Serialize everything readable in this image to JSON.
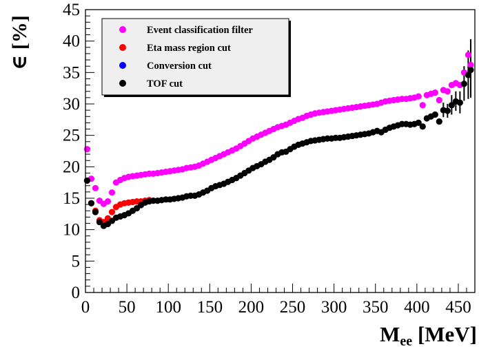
{
  "chart_data": {
    "type": "scatter",
    "title": "",
    "ylabel": "∈ [%]",
    "xlabel_main": "M",
    "xlabel_sub": "ee",
    "xlabel_unit": " [MeV]",
    "xlim": [
      0,
      470
    ],
    "ylim": [
      0,
      45
    ],
    "x_ticks": [
      "0",
      "50",
      "100",
      "150",
      "200",
      "250",
      "300",
      "350",
      "400",
      "450"
    ],
    "y_ticks": [
      "0",
      "5",
      "10",
      "15",
      "20",
      "25",
      "30",
      "35",
      "40",
      "45"
    ],
    "legend_position": "top-left",
    "series": [
      {
        "name": "Event classification filter",
        "color": "#ff00ff",
        "points": [
          [
            2,
            22.8
          ],
          [
            7,
            18.1
          ],
          [
            12,
            16.6
          ],
          [
            17,
            14.6
          ],
          [
            22,
            14.1
          ],
          [
            27,
            14.5
          ],
          [
            32,
            15.9
          ],
          [
            37,
            17.5
          ],
          [
            42,
            17.9
          ],
          [
            47,
            18.2
          ],
          [
            52,
            18.4
          ],
          [
            57,
            18.5
          ],
          [
            62,
            18.6
          ],
          [
            67,
            18.7
          ],
          [
            72,
            18.8
          ],
          [
            77,
            18.9
          ],
          [
            82,
            18.9
          ],
          [
            87,
            19.0
          ],
          [
            92,
            19.1
          ],
          [
            97,
            19.2
          ],
          [
            102,
            19.3
          ],
          [
            107,
            19.4
          ],
          [
            112,
            19.5
          ],
          [
            117,
            19.6
          ],
          [
            122,
            19.8
          ],
          [
            127,
            19.9
          ],
          [
            132,
            20.0
          ],
          [
            137,
            20.2
          ],
          [
            142,
            20.5
          ],
          [
            147,
            20.8
          ],
          [
            152,
            21.1
          ],
          [
            157,
            21.4
          ],
          [
            162,
            21.7
          ],
          [
            167,
            22.0
          ],
          [
            172,
            22.3
          ],
          [
            177,
            22.6
          ],
          [
            182,
            22.9
          ],
          [
            187,
            23.3
          ],
          [
            192,
            23.7
          ],
          [
            197,
            24.1
          ],
          [
            202,
            24.5
          ],
          [
            207,
            24.8
          ],
          [
            212,
            25.1
          ],
          [
            217,
            25.4
          ],
          [
            222,
            25.7
          ],
          [
            227,
            26.0
          ],
          [
            232,
            26.3
          ],
          [
            237,
            26.5
          ],
          [
            242,
            26.7
          ],
          [
            247,
            27.0
          ],
          [
            252,
            27.3
          ],
          [
            257,
            27.6
          ],
          [
            262,
            27.8
          ],
          [
            267,
            28.1
          ],
          [
            272,
            28.3
          ],
          [
            277,
            28.5
          ],
          [
            282,
            28.6
          ],
          [
            287,
            28.7
          ],
          [
            292,
            28.8
          ],
          [
            297,
            28.9
          ],
          [
            302,
            29.0
          ],
          [
            307,
            29.1
          ],
          [
            312,
            29.2
          ],
          [
            317,
            29.3
          ],
          [
            322,
            29.4
          ],
          [
            327,
            29.5
          ],
          [
            332,
            29.6
          ],
          [
            337,
            29.7
          ],
          [
            342,
            29.8
          ],
          [
            347,
            29.9
          ],
          [
            352,
            30.0
          ],
          [
            357,
            30.2
          ],
          [
            362,
            30.4
          ],
          [
            367,
            30.5
          ],
          [
            372,
            30.6
          ],
          [
            377,
            30.7
          ],
          [
            382,
            30.8
          ],
          [
            387,
            30.8
          ],
          [
            392,
            30.9
          ],
          [
            397,
            31.0
          ],
          [
            402,
            31.2
          ],
          [
            407,
            29.8
          ],
          [
            412,
            31.4
          ],
          [
            417,
            31.6
          ],
          [
            422,
            31.8
          ],
          [
            427,
            30.6
          ],
          [
            432,
            32.2
          ],
          [
            437,
            32.0
          ],
          [
            442,
            33.0
          ],
          [
            447,
            33.3
          ],
          [
            452,
            33.0
          ],
          [
            457,
            35.0
          ],
          [
            462,
            37.8
          ],
          [
            465,
            36.2
          ]
        ]
      },
      {
        "name": "Eta mass region cut",
        "color": "#ff0000",
        "points": [
          [
            2,
            17.8
          ],
          [
            7,
            14.2
          ],
          [
            12,
            13.0
          ],
          [
            17,
            11.5
          ],
          [
            22,
            11.2
          ],
          [
            27,
            11.8
          ],
          [
            32,
            12.8
          ],
          [
            37,
            13.6
          ],
          [
            42,
            14.0
          ],
          [
            47,
            14.2
          ],
          [
            52,
            14.3
          ],
          [
            57,
            14.4
          ],
          [
            62,
            14.5
          ],
          [
            67,
            14.5
          ],
          [
            72,
            14.6
          ],
          [
            77,
            14.7
          ]
        ]
      },
      {
        "name": "Conversion cut",
        "color": "#0000ff",
        "points": []
      },
      {
        "name": "TOF cut",
        "color": "#000000",
        "points": [
          [
            2,
            17.8
          ],
          [
            7,
            14.2
          ],
          [
            12,
            12.8
          ],
          [
            17,
            11.2
          ],
          [
            22,
            10.6
          ],
          [
            27,
            10.9
          ],
          [
            32,
            11.4
          ],
          [
            37,
            11.9
          ],
          [
            42,
            12.1
          ],
          [
            47,
            12.3
          ],
          [
            52,
            12.6
          ],
          [
            57,
            13.0
          ],
          [
            62,
            13.4
          ],
          [
            67,
            13.9
          ],
          [
            72,
            14.3
          ],
          [
            77,
            14.5
          ],
          [
            82,
            14.6
          ],
          [
            87,
            14.6
          ],
          [
            92,
            14.7
          ],
          [
            97,
            14.8
          ],
          [
            102,
            14.8
          ],
          [
            107,
            14.9
          ],
          [
            112,
            15.0
          ],
          [
            117,
            15.1
          ],
          [
            122,
            15.3
          ],
          [
            127,
            15.4
          ],
          [
            132,
            15.4
          ],
          [
            137,
            15.6
          ],
          [
            142,
            15.9
          ],
          [
            147,
            16.2
          ],
          [
            152,
            16.6
          ],
          [
            157,
            16.9
          ],
          [
            162,
            17.1
          ],
          [
            167,
            17.3
          ],
          [
            172,
            17.6
          ],
          [
            177,
            17.9
          ],
          [
            182,
            18.2
          ],
          [
            187,
            18.6
          ],
          [
            192,
            19.0
          ],
          [
            197,
            19.4
          ],
          [
            202,
            19.8
          ],
          [
            207,
            20.1
          ],
          [
            212,
            20.4
          ],
          [
            217,
            20.8
          ],
          [
            222,
            21.1
          ],
          [
            227,
            21.5
          ],
          [
            232,
            22.0
          ],
          [
            237,
            22.3
          ],
          [
            242,
            22.4
          ],
          [
            247,
            22.8
          ],
          [
            252,
            23.2
          ],
          [
            257,
            23.5
          ],
          [
            262,
            23.7
          ],
          [
            267,
            23.9
          ],
          [
            272,
            24.1
          ],
          [
            277,
            24.2
          ],
          [
            282,
            24.3
          ],
          [
            287,
            24.4
          ],
          [
            292,
            24.5
          ],
          [
            297,
            24.5
          ],
          [
            302,
            24.6
          ],
          [
            307,
            24.6
          ],
          [
            312,
            24.7
          ],
          [
            317,
            24.8
          ],
          [
            322,
            24.9
          ],
          [
            327,
            25.0
          ],
          [
            332,
            25.1
          ],
          [
            337,
            25.2
          ],
          [
            342,
            25.3
          ],
          [
            347,
            25.5
          ],
          [
            352,
            25.7
          ],
          [
            357,
            25.5
          ],
          [
            362,
            25.9
          ],
          [
            367,
            26.2
          ],
          [
            372,
            26.4
          ],
          [
            377,
            26.6
          ],
          [
            382,
            26.8
          ],
          [
            387,
            26.8
          ],
          [
            392,
            26.7
          ],
          [
            397,
            26.8
          ],
          [
            402,
            27.0
          ],
          [
            407,
            26.4
          ],
          [
            412,
            27.7
          ],
          [
            417,
            28.0
          ],
          [
            422,
            28.3
          ],
          [
            427,
            27.2
          ],
          [
            432,
            29.0
          ],
          [
            437,
            28.9
          ],
          [
            442,
            29.8
          ],
          [
            447,
            30.4
          ],
          [
            452,
            30.2
          ],
          [
            457,
            33.2
          ],
          [
            462,
            34.6
          ],
          [
            465,
            35.4
          ]
        ]
      }
    ],
    "error_bars": [
      {
        "x": 432,
        "ylow": 27.9,
        "yhigh": 30.2
      },
      {
        "x": 437,
        "ylow": 27.8,
        "yhigh": 30.0
      },
      {
        "x": 442,
        "ylow": 28.3,
        "yhigh": 31.4
      },
      {
        "x": 447,
        "ylow": 28.9,
        "yhigh": 32.0
      },
      {
        "x": 452,
        "ylow": 28.5,
        "yhigh": 32.0
      },
      {
        "x": 457,
        "ylow": 30.5,
        "yhigh": 36.0
      },
      {
        "x": 462,
        "ylow": 30.8,
        "yhigh": 38.5
      },
      {
        "x": 465,
        "ylow": 31.0,
        "yhigh": 40.3
      }
    ]
  }
}
